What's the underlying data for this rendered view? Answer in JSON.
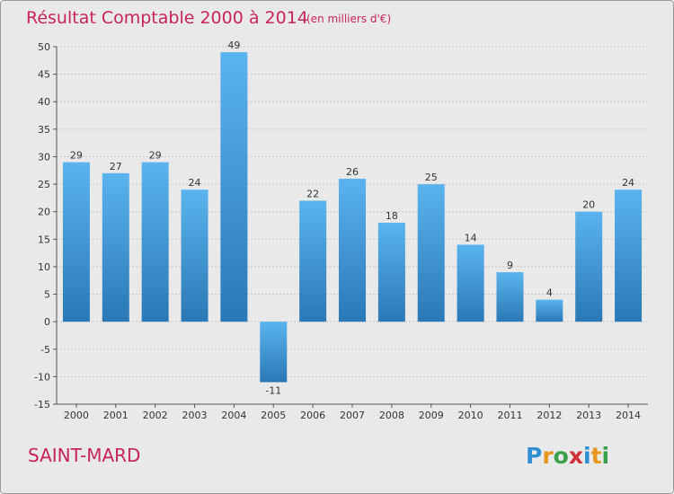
{
  "colors": {
    "bar_light": "#5ab4ee",
    "bar_dark": "#2a78b6",
    "title": "#c8235b",
    "text": "#333333",
    "grid": "#c8c8c8",
    "background": "#e9e9e9"
  },
  "chart_data": {
    "type": "bar",
    "title": "Résultat Comptable 2000 à 2014",
    "subtitle": "(en milliers d'€)",
    "categories": [
      "2000",
      "2001",
      "2002",
      "2003",
      "2004",
      "2005",
      "2006",
      "2007",
      "2008",
      "2009",
      "2010",
      "2011",
      "2012",
      "2013",
      "2014"
    ],
    "values": [
      29,
      27,
      29,
      24,
      49,
      -11,
      22,
      26,
      18,
      25,
      14,
      9,
      4,
      20,
      24
    ],
    "data_labels": [
      "29",
      "27",
      "29",
      "24",
      "49",
      "-11",
      "22",
      "26",
      "18",
      "25",
      "14",
      "9",
      "4",
      "20",
      "24"
    ],
    "y_ticks": [
      50,
      45,
      40,
      35,
      30,
      25,
      20,
      15,
      10,
      5,
      0,
      -5,
      -10,
      -15
    ],
    "y_tick_labels": [
      "50",
      "45",
      "40",
      "35",
      "30",
      "25",
      "20",
      "15",
      "10",
      "5",
      "0",
      "-5",
      "-10",
      "-15"
    ],
    "ylim": [
      -15,
      50
    ],
    "grid": true,
    "legend": "none"
  },
  "footer": {
    "location": "SAINT-MARD",
    "brand_letters": [
      "P",
      "r",
      "o",
      "x",
      "i",
      "t",
      "i"
    ],
    "brand_colors": [
      "#2f8fd0",
      "#e8961e",
      "#3aa04a",
      "#d1323a",
      "#2f8fd0",
      "#e8961e",
      "#3aa04a"
    ]
  }
}
